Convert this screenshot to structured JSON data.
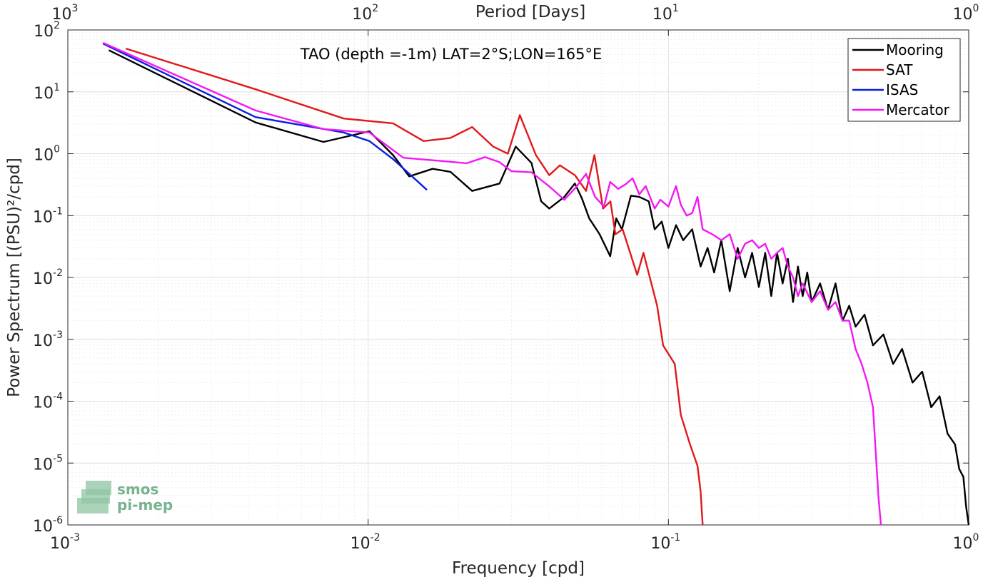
{
  "chart_data": {
    "type": "line",
    "title": "TAO (depth =-1m) LAT=2°S;LON=165°E",
    "xlabel": "Frequency [cpd]",
    "ylabel": "Power Spectrum [(PSU)²/cpd]",
    "x2label": "Period [Days]",
    "xscale": "log",
    "yscale": "log",
    "xlim": [
      0.001,
      1
    ],
    "ylim": [
      1e-06,
      100
    ],
    "grid": true,
    "legend_position": "top-right",
    "x_ticks": [
      {
        "base": "10",
        "exp": "-3",
        "value": 0.001
      },
      {
        "base": "10",
        "exp": "-2",
        "value": 0.01
      },
      {
        "base": "10",
        "exp": "-1",
        "value": 0.1
      },
      {
        "base": "10",
        "exp": "0",
        "value": 1
      }
    ],
    "x2_ticks": [
      {
        "base": "10",
        "exp": "3",
        "value": 0.001
      },
      {
        "base": "10",
        "exp": "2",
        "value": 0.01
      },
      {
        "base": "10",
        "exp": "1",
        "value": 0.1
      },
      {
        "base": "10",
        "exp": "0",
        "value": 1
      }
    ],
    "y_ticks": [
      {
        "base": "10",
        "exp": "2",
        "value": 100
      },
      {
        "base": "10",
        "exp": "1",
        "value": 10
      },
      {
        "base": "10",
        "exp": "0",
        "value": 1
      },
      {
        "base": "10",
        "exp": "-1",
        "value": 0.1
      },
      {
        "base": "10",
        "exp": "-2",
        "value": 0.01
      },
      {
        "base": "10",
        "exp": "-3",
        "value": 0.001
      },
      {
        "base": "10",
        "exp": "-4",
        "value": 0.0001
      },
      {
        "base": "10",
        "exp": "-5",
        "value": 1e-05
      },
      {
        "base": "10",
        "exp": "-6",
        "value": 1e-06
      }
    ],
    "series": [
      {
        "name": "Mooring",
        "color": "#000000",
        "points": [
          [
            0.00137,
            47
          ],
          [
            0.00422,
            3.2
          ],
          [
            0.0071,
            1.55
          ],
          [
            0.0101,
            2.3
          ],
          [
            0.0121,
            0.95
          ],
          [
            0.0137,
            0.43
          ],
          [
            0.0164,
            0.57
          ],
          [
            0.0188,
            0.51
          ],
          [
            0.0222,
            0.25
          ],
          [
            0.0274,
            0.33
          ],
          [
            0.031,
            1.3
          ],
          [
            0.035,
            0.71
          ],
          [
            0.0377,
            0.17
          ],
          [
            0.0401,
            0.13
          ],
          [
            0.045,
            0.2
          ],
          [
            0.0488,
            0.33
          ],
          [
            0.0515,
            0.19
          ],
          [
            0.0545,
            0.09
          ],
          [
            0.059,
            0.05
          ],
          [
            0.064,
            0.022
          ],
          [
            0.067,
            0.09
          ],
          [
            0.07,
            0.06
          ],
          [
            0.075,
            0.21
          ],
          [
            0.08,
            0.2
          ],
          [
            0.086,
            0.17
          ],
          [
            0.09,
            0.06
          ],
          [
            0.095,
            0.08
          ],
          [
            0.1,
            0.03
          ],
          [
            0.106,
            0.07
          ],
          [
            0.112,
            0.04
          ],
          [
            0.12,
            0.06
          ],
          [
            0.128,
            0.015
          ],
          [
            0.135,
            0.03
          ],
          [
            0.142,
            0.012
          ],
          [
            0.15,
            0.04
          ],
          [
            0.16,
            0.006
          ],
          [
            0.17,
            0.03
          ],
          [
            0.18,
            0.01
          ],
          [
            0.19,
            0.025
          ],
          [
            0.2,
            0.007
          ],
          [
            0.21,
            0.025
          ],
          [
            0.22,
            0.005
          ],
          [
            0.23,
            0.025
          ],
          [
            0.24,
            0.008
          ],
          [
            0.25,
            0.02
          ],
          [
            0.26,
            0.004
          ],
          [
            0.27,
            0.015
          ],
          [
            0.28,
            0.005
          ],
          [
            0.29,
            0.012
          ],
          [
            0.3,
            0.004
          ],
          [
            0.32,
            0.008
          ],
          [
            0.34,
            0.003
          ],
          [
            0.36,
            0.008
          ],
          [
            0.38,
            0.002
          ],
          [
            0.4,
            0.0035
          ],
          [
            0.42,
            0.0016
          ],
          [
            0.45,
            0.0025
          ],
          [
            0.48,
            0.0008
          ],
          [
            0.52,
            0.0012
          ],
          [
            0.56,
            0.0004
          ],
          [
            0.6,
            0.0007
          ],
          [
            0.65,
            0.0002
          ],
          [
            0.7,
            0.0003
          ],
          [
            0.75,
            8e-05
          ],
          [
            0.8,
            0.00012
          ],
          [
            0.85,
            3e-05
          ],
          [
            0.9,
            2e-05
          ],
          [
            0.93,
            8e-06
          ],
          [
            0.96,
            6e-06
          ],
          [
            0.98,
            2e-06
          ],
          [
            1.0,
            1e-06
          ]
        ]
      },
      {
        "name": "SAT",
        "color": "#e0191c",
        "points": [
          [
            0.00156,
            50
          ],
          [
            0.00422,
            11
          ],
          [
            0.0083,
            3.7
          ],
          [
            0.0121,
            3.1
          ],
          [
            0.0153,
            1.6
          ],
          [
            0.0188,
            1.8
          ],
          [
            0.0222,
            2.7
          ],
          [
            0.0261,
            1.3
          ],
          [
            0.0292,
            1.0
          ],
          [
            0.032,
            4.2
          ],
          [
            0.0362,
            0.95
          ],
          [
            0.0401,
            0.45
          ],
          [
            0.0435,
            0.65
          ],
          [
            0.0488,
            0.45
          ],
          [
            0.0532,
            0.25
          ],
          [
            0.0567,
            0.95
          ],
          [
            0.0606,
            0.13
          ],
          [
            0.0641,
            0.17
          ],
          [
            0.0666,
            0.05
          ],
          [
            0.0704,
            0.06
          ],
          [
            0.0787,
            0.011
          ],
          [
            0.0826,
            0.025
          ],
          [
            0.0917,
            0.0035
          ],
          [
            0.096,
            0.0008
          ],
          [
            0.105,
            0.0004
          ],
          [
            0.11,
            6e-05
          ],
          [
            0.118,
            2e-05
          ],
          [
            0.125,
            9e-06
          ],
          [
            0.128,
            3.5e-06
          ],
          [
            0.13,
            1e-06
          ]
        ]
      },
      {
        "name": "ISAS",
        "color": "#0a1fe0",
        "points": [
          [
            0.00131,
            60
          ],
          [
            0.00422,
            3.9
          ],
          [
            0.0083,
            2.2
          ],
          [
            0.0101,
            1.6
          ],
          [
            0.0121,
            0.82
          ],
          [
            0.0157,
            0.26
          ]
        ]
      },
      {
        "name": "Mercator",
        "color": "#f318f3",
        "points": [
          [
            0.00131,
            62
          ],
          [
            0.00422,
            5
          ],
          [
            0.0071,
            2.5
          ],
          [
            0.0101,
            2.2
          ],
          [
            0.0131,
            0.86
          ],
          [
            0.0188,
            0.74
          ],
          [
            0.0213,
            0.7
          ],
          [
            0.0245,
            0.88
          ],
          [
            0.0274,
            0.73
          ],
          [
            0.03,
            0.52
          ],
          [
            0.035,
            0.5
          ],
          [
            0.04,
            0.3
          ],
          [
            0.045,
            0.18
          ],
          [
            0.049,
            0.28
          ],
          [
            0.0532,
            0.47
          ],
          [
            0.057,
            0.2
          ],
          [
            0.061,
            0.14
          ],
          [
            0.064,
            0.35
          ],
          [
            0.068,
            0.27
          ],
          [
            0.072,
            0.32
          ],
          [
            0.076,
            0.4
          ],
          [
            0.08,
            0.22
          ],
          [
            0.084,
            0.3
          ],
          [
            0.09,
            0.13
          ],
          [
            0.094,
            0.18
          ],
          [
            0.1,
            0.14
          ],
          [
            0.106,
            0.3
          ],
          [
            0.11,
            0.15
          ],
          [
            0.115,
            0.1
          ],
          [
            0.12,
            0.11
          ],
          [
            0.125,
            0.2
          ],
          [
            0.13,
            0.06
          ],
          [
            0.14,
            0.05
          ],
          [
            0.15,
            0.04
          ],
          [
            0.16,
            0.05
          ],
          [
            0.17,
            0.02
          ],
          [
            0.18,
            0.035
          ],
          [
            0.19,
            0.04
          ],
          [
            0.2,
            0.03
          ],
          [
            0.21,
            0.035
          ],
          [
            0.22,
            0.02
          ],
          [
            0.23,
            0.025
          ],
          [
            0.24,
            0.03
          ],
          [
            0.25,
            0.015
          ],
          [
            0.26,
            0.01
          ],
          [
            0.27,
            0.005
          ],
          [
            0.28,
            0.008
          ],
          [
            0.3,
            0.004
          ],
          [
            0.32,
            0.006
          ],
          [
            0.34,
            0.003
          ],
          [
            0.36,
            0.004
          ],
          [
            0.38,
            0.002
          ],
          [
            0.4,
            0.002
          ],
          [
            0.42,
            0.0007
          ],
          [
            0.44,
            0.0004
          ],
          [
            0.46,
            0.0002
          ],
          [
            0.48,
            8e-05
          ],
          [
            0.5,
            3e-06
          ],
          [
            0.51,
            1e-06
          ]
        ]
      }
    ]
  }
}
